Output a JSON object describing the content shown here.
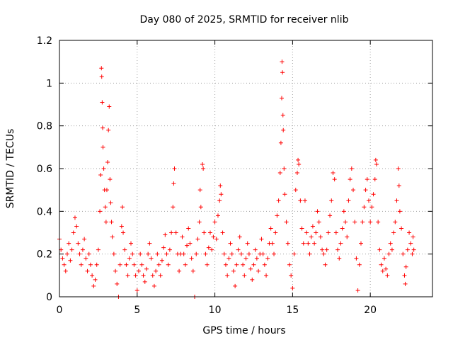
{
  "chart_data": {
    "type": "scatter",
    "title": "Day 080 of 2025, SRMTID for receiver nlib",
    "xlabel": "GPS time / hours",
    "ylabel": "SRMTID / TECUs",
    "xlim": [
      0,
      24
    ],
    "ylim": [
      0,
      1.2
    ],
    "xticks": [
      0,
      5,
      10,
      15,
      20
    ],
    "xtick_labels": [
      "0",
      "5",
      "10",
      "15",
      "20"
    ],
    "yticks": [
      0,
      0.2,
      0.4,
      0.6,
      0.8,
      1.0,
      1.2
    ],
    "ytick_labels": [
      "0",
      "0.2",
      "0.4",
      "0.6",
      "0.8",
      "1",
      "1.2"
    ],
    "grid": true,
    "marker": "+",
    "marker_color": "#ff0000",
    "series": [
      {
        "name": "SRMTID",
        "points": [
          [
            0.0,
            0.27
          ],
          [
            0.1,
            0.22
          ],
          [
            0.2,
            0.18
          ],
          [
            0.3,
            0.15
          ],
          [
            0.4,
            0.12
          ],
          [
            0.5,
            0.2
          ],
          [
            0.6,
            0.25
          ],
          [
            0.7,
            0.17
          ],
          [
            0.8,
            0.22
          ],
          [
            0.9,
            0.3
          ],
          [
            1.0,
            0.37
          ],
          [
            1.1,
            0.33
          ],
          [
            1.2,
            0.25
          ],
          [
            1.3,
            0.2
          ],
          [
            1.4,
            0.15
          ],
          [
            1.5,
            0.22
          ],
          [
            1.6,
            0.27
          ],
          [
            1.7,
            0.18
          ],
          [
            1.8,
            0.12
          ],
          [
            1.9,
            0.2
          ],
          [
            2.0,
            0.15
          ],
          [
            2.1,
            0.1
          ],
          [
            2.2,
            0.05
          ],
          [
            2.3,
            0.08
          ],
          [
            2.4,
            0.15
          ],
          [
            2.5,
            0.22
          ],
          [
            2.6,
            0.4
          ],
          [
            2.65,
            0.57
          ],
          [
            2.7,
            1.07
          ],
          [
            2.72,
            1.03
          ],
          [
            2.75,
            0.91
          ],
          [
            2.78,
            0.79
          ],
          [
            2.8,
            0.7
          ],
          [
            2.85,
            0.6
          ],
          [
            2.9,
            0.5
          ],
          [
            2.95,
            0.42
          ],
          [
            3.0,
            0.35
          ],
          [
            3.05,
            0.5
          ],
          [
            3.1,
            0.63
          ],
          [
            3.15,
            0.78
          ],
          [
            3.2,
            0.89
          ],
          [
            3.25,
            0.55
          ],
          [
            3.3,
            0.44
          ],
          [
            3.35,
            0.35
          ],
          [
            3.4,
            0.28
          ],
          [
            3.5,
            0.2
          ],
          [
            3.6,
            0.12
          ],
          [
            3.7,
            0.06
          ],
          [
            3.8,
            0.0
          ],
          [
            3.9,
            0.15
          ],
          [
            4.0,
            0.33
          ],
          [
            4.05,
            0.42
          ],
          [
            4.1,
            0.3
          ],
          [
            4.2,
            0.22
          ],
          [
            4.3,
            0.15
          ],
          [
            4.4,
            0.1
          ],
          [
            4.5,
            0.18
          ],
          [
            4.6,
            0.25
          ],
          [
            4.7,
            0.2
          ],
          [
            4.8,
            0.15
          ],
          [
            4.9,
            0.1
          ],
          [
            5.0,
            0.03
          ],
          [
            5.1,
            0.12
          ],
          [
            5.2,
            0.2
          ],
          [
            5.3,
            0.15
          ],
          [
            5.4,
            0.1
          ],
          [
            5.5,
            0.07
          ],
          [
            5.6,
            0.13
          ],
          [
            5.7,
            0.2
          ],
          [
            5.8,
            0.25
          ],
          [
            5.9,
            0.18
          ],
          [
            6.0,
            0.1
          ],
          [
            6.1,
            0.05
          ],
          [
            6.2,
            0.12
          ],
          [
            6.3,
            0.2
          ],
          [
            6.4,
            0.15
          ],
          [
            6.5,
            0.1
          ],
          [
            6.6,
            0.17
          ],
          [
            6.7,
            0.23
          ],
          [
            6.8,
            0.29
          ],
          [
            6.9,
            0.2
          ],
          [
            7.0,
            0.15
          ],
          [
            7.1,
            0.22
          ],
          [
            7.2,
            0.3
          ],
          [
            7.3,
            0.42
          ],
          [
            7.35,
            0.53
          ],
          [
            7.4,
            0.6
          ],
          [
            7.5,
            0.3
          ],
          [
            7.6,
            0.2
          ],
          [
            7.7,
            0.12
          ],
          [
            7.8,
            0.2
          ],
          [
            7.9,
            0.28
          ],
          [
            8.0,
            0.2
          ],
          [
            8.1,
            0.15
          ],
          [
            8.2,
            0.24
          ],
          [
            8.3,
            0.32
          ],
          [
            8.4,
            0.25
          ],
          [
            8.5,
            0.18
          ],
          [
            8.6,
            0.12
          ],
          [
            8.7,
            0.0
          ],
          [
            8.8,
            0.2
          ],
          [
            8.9,
            0.27
          ],
          [
            9.0,
            0.35
          ],
          [
            9.05,
            0.5
          ],
          [
            9.1,
            0.42
          ],
          [
            9.2,
            0.62
          ],
          [
            9.25,
            0.6
          ],
          [
            9.3,
            0.3
          ],
          [
            9.4,
            0.2
          ],
          [
            9.5,
            0.15
          ],
          [
            9.6,
            0.23
          ],
          [
            9.7,
            0.3
          ],
          [
            9.8,
            0.22
          ],
          [
            9.9,
            0.28
          ],
          [
            10.0,
            0.35
          ],
          [
            10.1,
            0.27
          ],
          [
            10.2,
            0.38
          ],
          [
            10.3,
            0.45
          ],
          [
            10.35,
            0.52
          ],
          [
            10.4,
            0.48
          ],
          [
            10.5,
            0.3
          ],
          [
            10.6,
            0.2
          ],
          [
            10.7,
            0.15
          ],
          [
            10.8,
            0.1
          ],
          [
            10.9,
            0.18
          ],
          [
            11.0,
            0.25
          ],
          [
            11.1,
            0.2
          ],
          [
            11.2,
            0.12
          ],
          [
            11.3,
            0.05
          ],
          [
            11.4,
            0.15
          ],
          [
            11.5,
            0.22
          ],
          [
            11.6,
            0.28
          ],
          [
            11.7,
            0.2
          ],
          [
            11.8,
            0.15
          ],
          [
            11.9,
            0.1
          ],
          [
            12.0,
            0.18
          ],
          [
            12.1,
            0.25
          ],
          [
            12.2,
            0.2
          ],
          [
            12.3,
            0.13
          ],
          [
            12.4,
            0.08
          ],
          [
            12.5,
            0.15
          ],
          [
            12.6,
            0.22
          ],
          [
            12.7,
            0.18
          ],
          [
            12.8,
            0.12
          ],
          [
            12.9,
            0.2
          ],
          [
            13.0,
            0.27
          ],
          [
            13.1,
            0.2
          ],
          [
            13.2,
            0.15
          ],
          [
            13.3,
            0.1
          ],
          [
            13.4,
            0.18
          ],
          [
            13.5,
            0.25
          ],
          [
            13.6,
            0.32
          ],
          [
            13.7,
            0.25
          ],
          [
            13.8,
            0.2
          ],
          [
            13.9,
            0.3
          ],
          [
            14.0,
            0.38
          ],
          [
            14.1,
            0.45
          ],
          [
            14.2,
            0.58
          ],
          [
            14.25,
            0.72
          ],
          [
            14.3,
            0.93
          ],
          [
            14.32,
            1.1
          ],
          [
            14.35,
            1.05
          ],
          [
            14.38,
            0.85
          ],
          [
            14.4,
            0.78
          ],
          [
            14.45,
            0.6
          ],
          [
            14.5,
            0.48
          ],
          [
            14.6,
            0.35
          ],
          [
            14.7,
            0.25
          ],
          [
            14.8,
            0.15
          ],
          [
            14.9,
            0.1
          ],
          [
            15.0,
            0.04
          ],
          [
            15.1,
            0.2
          ],
          [
            15.2,
            0.5
          ],
          [
            15.3,
            0.58
          ],
          [
            15.35,
            0.64
          ],
          [
            15.4,
            0.62
          ],
          [
            15.5,
            0.45
          ],
          [
            15.6,
            0.32
          ],
          [
            15.7,
            0.25
          ],
          [
            15.8,
            0.45
          ],
          [
            15.9,
            0.3
          ],
          [
            16.0,
            0.25
          ],
          [
            16.1,
            0.2
          ],
          [
            16.2,
            0.28
          ],
          [
            16.3,
            0.33
          ],
          [
            16.4,
            0.25
          ],
          [
            16.5,
            0.3
          ],
          [
            16.6,
            0.4
          ],
          [
            16.7,
            0.35
          ],
          [
            16.8,
            0.28
          ],
          [
            16.9,
            0.22
          ],
          [
            17.0,
            0.2
          ],
          [
            17.1,
            0.15
          ],
          [
            17.2,
            0.22
          ],
          [
            17.3,
            0.3
          ],
          [
            17.4,
            0.38
          ],
          [
            17.5,
            0.45
          ],
          [
            17.6,
            0.58
          ],
          [
            17.7,
            0.55
          ],
          [
            17.8,
            0.3
          ],
          [
            17.9,
            0.22
          ],
          [
            18.0,
            0.18
          ],
          [
            18.1,
            0.25
          ],
          [
            18.2,
            0.32
          ],
          [
            18.3,
            0.4
          ],
          [
            18.4,
            0.35
          ],
          [
            18.5,
            0.28
          ],
          [
            18.6,
            0.45
          ],
          [
            18.7,
            0.55
          ],
          [
            18.8,
            0.6
          ],
          [
            18.9,
            0.5
          ],
          [
            19.0,
            0.35
          ],
          [
            19.1,
            0.18
          ],
          [
            19.2,
            0.03
          ],
          [
            19.3,
            0.15
          ],
          [
            19.4,
            0.25
          ],
          [
            19.5,
            0.35
          ],
          [
            19.6,
            0.42
          ],
          [
            19.7,
            0.5
          ],
          [
            19.8,
            0.55
          ],
          [
            19.9,
            0.45
          ],
          [
            20.0,
            0.35
          ],
          [
            20.1,
            0.42
          ],
          [
            20.2,
            0.48
          ],
          [
            20.3,
            0.55
          ],
          [
            20.35,
            0.64
          ],
          [
            20.4,
            0.62
          ],
          [
            20.5,
            0.35
          ],
          [
            20.6,
            0.22
          ],
          [
            20.7,
            0.15
          ],
          [
            20.8,
            0.12
          ],
          [
            20.9,
            0.18
          ],
          [
            21.0,
            0.13
          ],
          [
            21.1,
            0.1
          ],
          [
            21.2,
            0.2
          ],
          [
            21.3,
            0.25
          ],
          [
            21.4,
            0.22
          ],
          [
            21.5,
            0.3
          ],
          [
            21.6,
            0.35
          ],
          [
            21.7,
            0.45
          ],
          [
            21.8,
            0.6
          ],
          [
            21.85,
            0.52
          ],
          [
            21.9,
            0.4
          ],
          [
            22.0,
            0.32
          ],
          [
            22.1,
            0.2
          ],
          [
            22.2,
            0.1
          ],
          [
            22.25,
            0.06
          ],
          [
            22.3,
            0.14
          ],
          [
            22.4,
            0.22
          ],
          [
            22.5,
            0.3
          ],
          [
            22.6,
            0.25
          ],
          [
            22.7,
            0.2
          ],
          [
            22.75,
            0.28
          ],
          [
            22.8,
            0.22
          ]
        ]
      }
    ]
  }
}
